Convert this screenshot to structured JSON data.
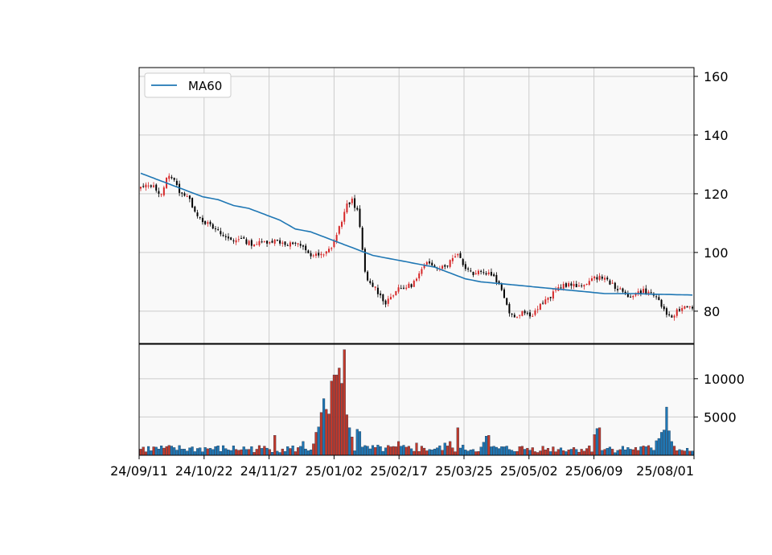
{
  "chart_data": {
    "type": "candlestick",
    "legend": {
      "position": "top-left",
      "entries": [
        {
          "label": "MA60",
          "color": "#1f77b4"
        }
      ]
    },
    "x_tick_labels": [
      "24/09/11",
      "24/10/22",
      "24/11/27",
      "25/01/02",
      "25/02/17",
      "25/03/25",
      "25/05/02",
      "25/06/09",
      "25/08/01"
    ],
    "price_axis": {
      "ylim": [
        69,
        163
      ],
      "ticks": [
        80,
        100,
        120,
        140,
        160
      ],
      "side": "right"
    },
    "volume_axis": {
      "ylim": [
        0,
        14500
      ],
      "ticks": [
        5000,
        10000
      ],
      "side": "right"
    },
    "grid": true,
    "colors": {
      "up": "#d62728",
      "down": "#000000",
      "ma": "#1f77b4",
      "volume_up": "#c0392b",
      "volume_down": "#1f77b4",
      "background": "#f9f9f9",
      "grid": "#cccccc"
    },
    "price_path": [
      [
        0,
        122
      ],
      [
        4,
        123
      ],
      [
        8,
        120
      ],
      [
        10,
        125
      ],
      [
        12,
        126
      ],
      [
        15,
        121
      ],
      [
        18,
        119
      ],
      [
        20,
        116
      ],
      [
        22,
        113
      ],
      [
        24,
        111
      ],
      [
        27,
        109
      ],
      [
        30,
        107
      ],
      [
        33,
        105
      ],
      [
        36,
        104
      ],
      [
        38,
        105
      ],
      [
        40,
        104
      ],
      [
        43,
        103
      ],
      [
        45,
        103
      ],
      [
        50,
        104
      ],
      [
        53,
        104
      ],
      [
        56,
        103
      ],
      [
        60,
        103
      ],
      [
        62,
        102
      ],
      [
        64,
        101
      ],
      [
        66,
        99
      ],
      [
        68,
        99
      ],
      [
        71,
        99
      ],
      [
        74,
        102
      ],
      [
        76,
        106
      ],
      [
        78,
        111
      ],
      [
        80,
        116
      ],
      [
        82,
        118
      ],
      [
        84,
        114
      ],
      [
        85,
        108
      ],
      [
        86,
        101
      ],
      [
        87,
        93
      ],
      [
        88,
        90
      ],
      [
        91,
        88
      ],
      [
        93,
        85
      ],
      [
        95,
        83
      ],
      [
        97,
        85
      ],
      [
        99,
        87
      ],
      [
        102,
        88
      ],
      [
        105,
        89
      ],
      [
        107,
        91
      ],
      [
        109,
        94
      ],
      [
        111,
        96
      ],
      [
        113,
        96
      ],
      [
        116,
        95
      ],
      [
        119,
        96
      ],
      [
        121,
        98
      ],
      [
        123,
        100
      ],
      [
        125,
        96
      ],
      [
        127,
        94
      ],
      [
        129,
        93
      ],
      [
        131,
        94
      ],
      [
        133,
        93
      ],
      [
        135,
        93
      ],
      [
        137,
        92
      ],
      [
        139,
        89
      ],
      [
        141,
        85
      ],
      [
        143,
        80
      ],
      [
        145,
        78
      ],
      [
        148,
        80
      ],
      [
        150,
        79
      ],
      [
        152,
        79
      ],
      [
        154,
        81
      ],
      [
        156,
        83
      ],
      [
        158,
        84
      ],
      [
        160,
        86
      ],
      [
        162,
        88
      ],
      [
        164,
        89
      ],
      [
        167,
        89
      ],
      [
        170,
        88
      ],
      [
        173,
        90
      ],
      [
        176,
        91
      ],
      [
        178,
        92
      ],
      [
        180,
        91
      ],
      [
        183,
        89
      ],
      [
        186,
        87
      ],
      [
        189,
        85
      ],
      [
        192,
        86
      ],
      [
        195,
        87
      ],
      [
        198,
        86
      ],
      [
        200,
        85
      ],
      [
        202,
        82
      ],
      [
        204,
        78
      ],
      [
        206,
        78
      ],
      [
        208,
        80
      ],
      [
        210,
        81
      ],
      [
        212,
        82
      ],
      [
        214,
        81
      ]
    ],
    "ma60": [
      [
        0,
        127
      ],
      [
        6,
        125
      ],
      [
        12,
        123
      ],
      [
        18,
        121
      ],
      [
        24,
        119
      ],
      [
        30,
        118
      ],
      [
        36,
        116
      ],
      [
        42,
        115
      ],
      [
        48,
        113
      ],
      [
        54,
        111
      ],
      [
        60,
        108
      ],
      [
        66,
        107
      ],
      [
        72,
        105
      ],
      [
        78,
        103
      ],
      [
        84,
        101
      ],
      [
        90,
        99
      ],
      [
        96,
        98
      ],
      [
        102,
        97
      ],
      [
        108,
        96
      ],
      [
        114,
        95
      ],
      [
        120,
        93
      ],
      [
        126,
        91
      ],
      [
        132,
        90
      ],
      [
        138,
        89.5
      ],
      [
        144,
        89
      ],
      [
        150,
        88.5
      ],
      [
        156,
        88
      ],
      [
        162,
        87.5
      ],
      [
        168,
        87
      ],
      [
        174,
        86.5
      ],
      [
        180,
        86
      ],
      [
        186,
        86
      ],
      [
        192,
        86
      ],
      [
        198,
        85.8
      ],
      [
        204,
        85.7
      ],
      [
        214,
        85.5
      ]
    ],
    "volume_events": [
      [
        52,
        2600
      ],
      [
        63,
        1800
      ],
      [
        67,
        1500
      ],
      [
        68,
        3000
      ],
      [
        69,
        3700
      ],
      [
        70,
        5600
      ],
      [
        71,
        7400
      ],
      [
        72,
        6000
      ],
      [
        73,
        5400
      ],
      [
        74,
        9700
      ],
      [
        75,
        10500
      ],
      [
        76,
        10500
      ],
      [
        77,
        11400
      ],
      [
        78,
        9400
      ],
      [
        79,
        13800
      ],
      [
        80,
        5300
      ],
      [
        81,
        3600
      ],
      [
        82,
        2400
      ],
      [
        84,
        3400
      ],
      [
        85,
        3100
      ],
      [
        100,
        1800
      ],
      [
        107,
        1600
      ],
      [
        118,
        1600
      ],
      [
        120,
        1800
      ],
      [
        123,
        3600
      ],
      [
        133,
        1700
      ],
      [
        134,
        2500
      ],
      [
        135,
        2600
      ],
      [
        176,
        2700
      ],
      [
        177,
        3500
      ],
      [
        178,
        3600
      ],
      [
        200,
        1900
      ],
      [
        201,
        2200
      ],
      [
        202,
        3000
      ],
      [
        203,
        3300
      ],
      [
        204,
        6300
      ],
      [
        205,
        3200
      ],
      [
        206,
        1800
      ],
      [
        207,
        1200
      ]
    ]
  }
}
